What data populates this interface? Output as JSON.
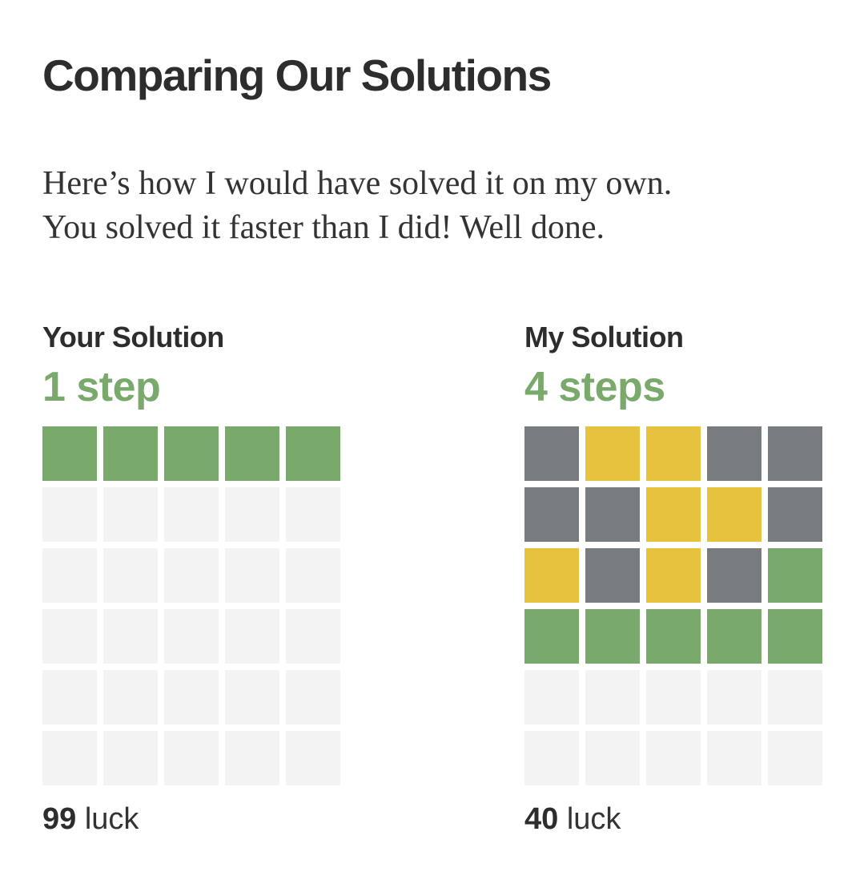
{
  "heading": {
    "title": "Comparing Our Solutions",
    "line1": "Here’s how I would have solved it on my own.",
    "line2": "You solved it faster than I did! Well done."
  },
  "colors": {
    "correct": "#79a96b",
    "present": "#e6c23f",
    "absent": "#797c7e",
    "empty": "#f3f3f3"
  },
  "your_solution": {
    "label": "Your Solution",
    "steps": "1 step",
    "luck_value": "99",
    "luck_label": "luck",
    "rows": [
      [
        "correct",
        "correct",
        "correct",
        "correct",
        "correct"
      ],
      [
        "empty",
        "empty",
        "empty",
        "empty",
        "empty"
      ],
      [
        "empty",
        "empty",
        "empty",
        "empty",
        "empty"
      ],
      [
        "empty",
        "empty",
        "empty",
        "empty",
        "empty"
      ],
      [
        "empty",
        "empty",
        "empty",
        "empty",
        "empty"
      ],
      [
        "empty",
        "empty",
        "empty",
        "empty",
        "empty"
      ]
    ]
  },
  "my_solution": {
    "label": "My Solution",
    "steps": "4 steps",
    "luck_value": "40",
    "luck_label": "luck",
    "rows": [
      [
        "absent",
        "present",
        "present",
        "absent",
        "absent"
      ],
      [
        "absent",
        "absent",
        "present",
        "present",
        "absent"
      ],
      [
        "present",
        "absent",
        "present",
        "absent",
        "correct"
      ],
      [
        "correct",
        "correct",
        "correct",
        "correct",
        "correct"
      ],
      [
        "empty",
        "empty",
        "empty",
        "empty",
        "empty"
      ],
      [
        "empty",
        "empty",
        "empty",
        "empty",
        "empty"
      ]
    ]
  }
}
